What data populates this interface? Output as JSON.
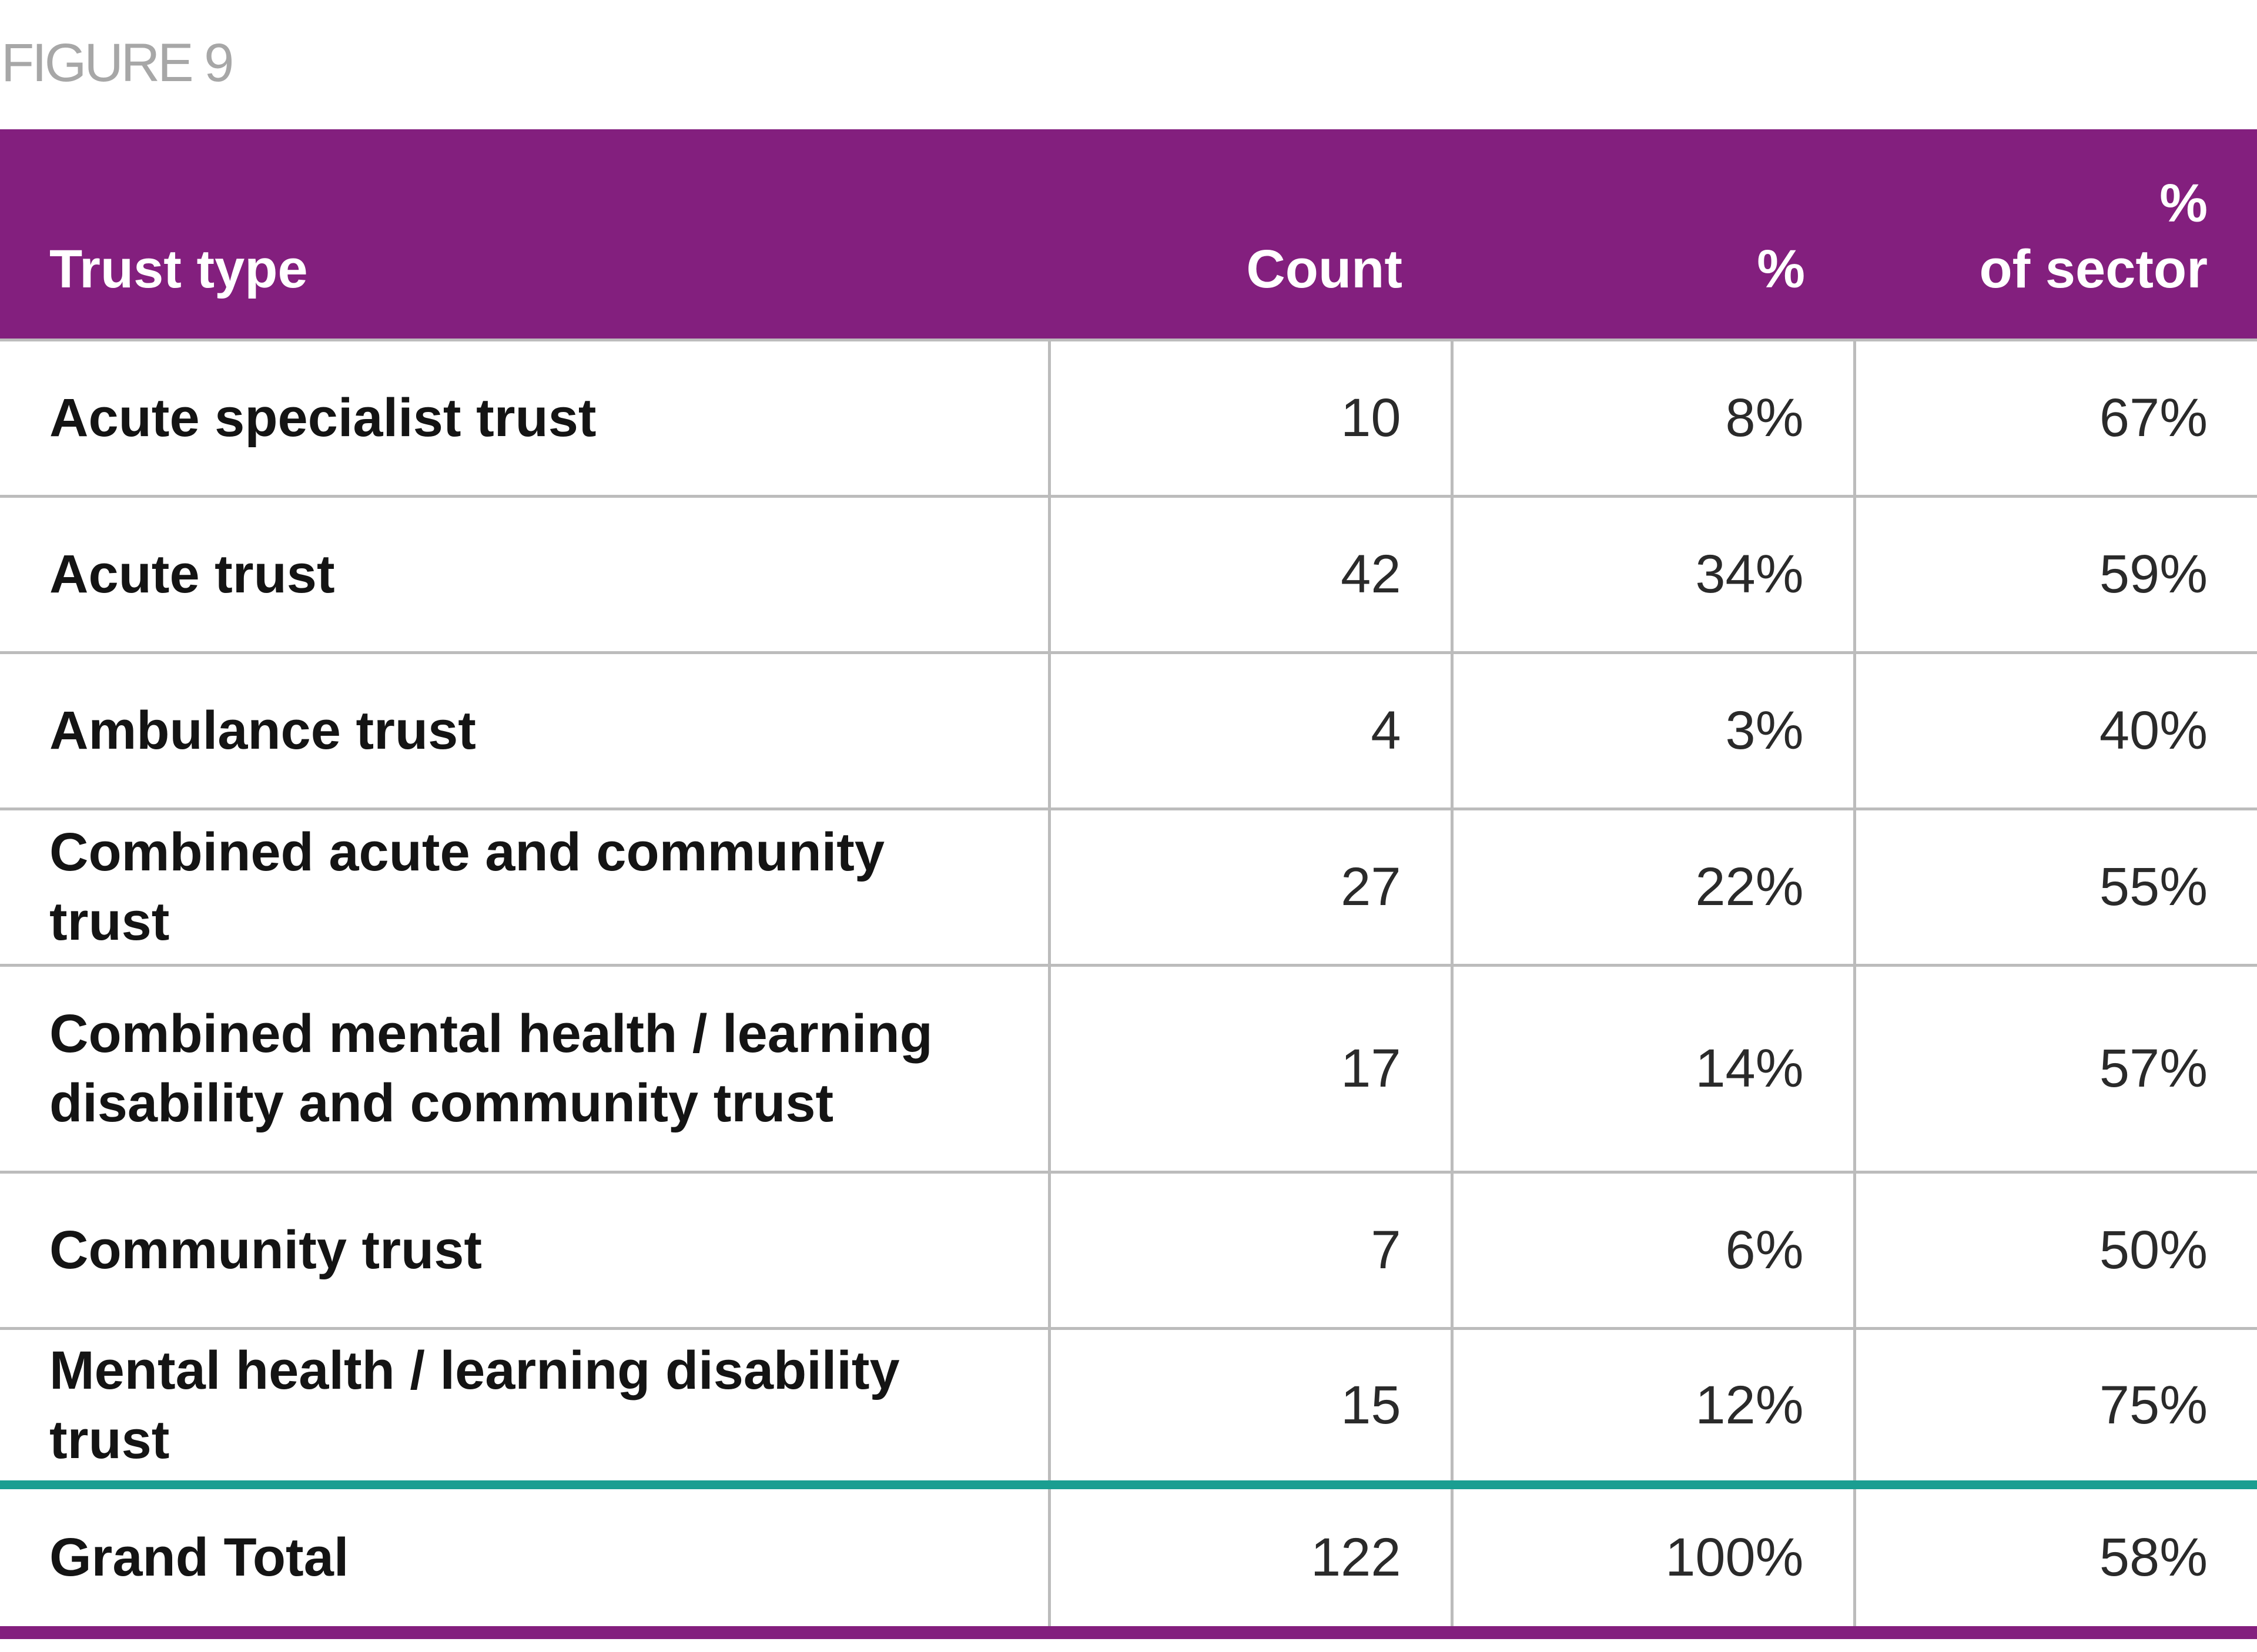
{
  "figure_label": "FIGURE 9",
  "colors": {
    "header_bg": "#831f7e",
    "total_divider": "#1a9e91",
    "grid": "#bcbcbc"
  },
  "chart_data": {
    "type": "table",
    "title": "FIGURE 9",
    "columns": [
      "Trust type",
      "Count",
      "%",
      "% of sector"
    ],
    "header_labels": {
      "trust_type": "Trust type",
      "count": "Count",
      "percent": "%",
      "percent_of_sector_line1": "%",
      "percent_of_sector_line2": "of sector"
    },
    "rows": [
      {
        "trust_type": "Acute specialist trust",
        "count": "10",
        "percent": "8%",
        "percent_of_sector": "67%"
      },
      {
        "trust_type": "Acute trust",
        "count": "42",
        "percent": "34%",
        "percent_of_sector": "59%"
      },
      {
        "trust_type": "Ambulance trust",
        "count": "4",
        "percent": "3%",
        "percent_of_sector": "40%"
      },
      {
        "trust_type": "Combined acute and community trust",
        "count": "27",
        "percent": "22%",
        "percent_of_sector": "55%"
      },
      {
        "trust_type_line1": "Combined mental health / learning",
        "trust_type_line2": "disability and community trust",
        "count": "17",
        "percent": "14%",
        "percent_of_sector": "57%"
      },
      {
        "trust_type": "Community trust",
        "count": "7",
        "percent": "6%",
        "percent_of_sector": "50%"
      },
      {
        "trust_type": "Mental health / learning disability trust",
        "count": "15",
        "percent": "12%",
        "percent_of_sector": "75%"
      }
    ],
    "total": {
      "trust_type": "Grand Total",
      "count": "122",
      "percent": "100%",
      "percent_of_sector": "58%"
    }
  }
}
